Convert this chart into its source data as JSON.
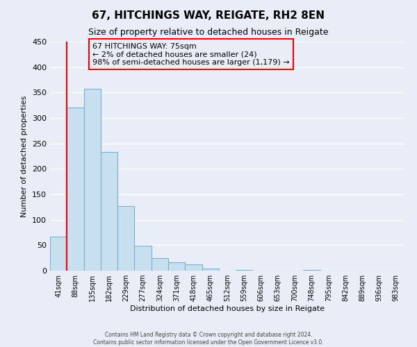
{
  "title": "67, HITCHINGS WAY, REIGATE, RH2 8EN",
  "subtitle": "Size of property relative to detached houses in Reigate",
  "xlabel": "Distribution of detached houses by size in Reigate",
  "ylabel": "Number of detached properties",
  "bin_labels": [
    "41sqm",
    "88sqm",
    "135sqm",
    "182sqm",
    "229sqm",
    "277sqm",
    "324sqm",
    "371sqm",
    "418sqm",
    "465sqm",
    "512sqm",
    "559sqm",
    "606sqm",
    "653sqm",
    "700sqm",
    "748sqm",
    "795sqm",
    "842sqm",
    "889sqm",
    "936sqm",
    "983sqm"
  ],
  "bar_values": [
    67,
    320,
    357,
    233,
    127,
    49,
    25,
    16,
    12,
    4,
    0,
    2,
    0,
    0,
    0,
    1,
    0,
    0,
    0,
    0,
    0
  ],
  "bar_color": "#c8dff0",
  "bar_edge_color": "#7aafd4",
  "annotation_line1": "67 HITCHINGS WAY: 75sqm",
  "annotation_line2": "← 2% of detached houses are smaller (24)",
  "annotation_line3": "98% of semi-detached houses are larger (1,179) →",
  "ylim": [
    0,
    450
  ],
  "yticks": [
    0,
    50,
    100,
    150,
    200,
    250,
    300,
    350,
    400,
    450
  ],
  "footer_line1": "Contains HM Land Registry data © Crown copyright and database right 2024.",
  "footer_line2": "Contains public sector information licensed under the Open Government Licence v3.0.",
  "bg_color": "#e8edf8",
  "grid_color": "#ffffff",
  "title_fontsize": 11,
  "subtitle_fontsize": 9,
  "axis_label_fontsize": 8,
  "tick_fontsize": 7,
  "annotation_fontsize": 8
}
